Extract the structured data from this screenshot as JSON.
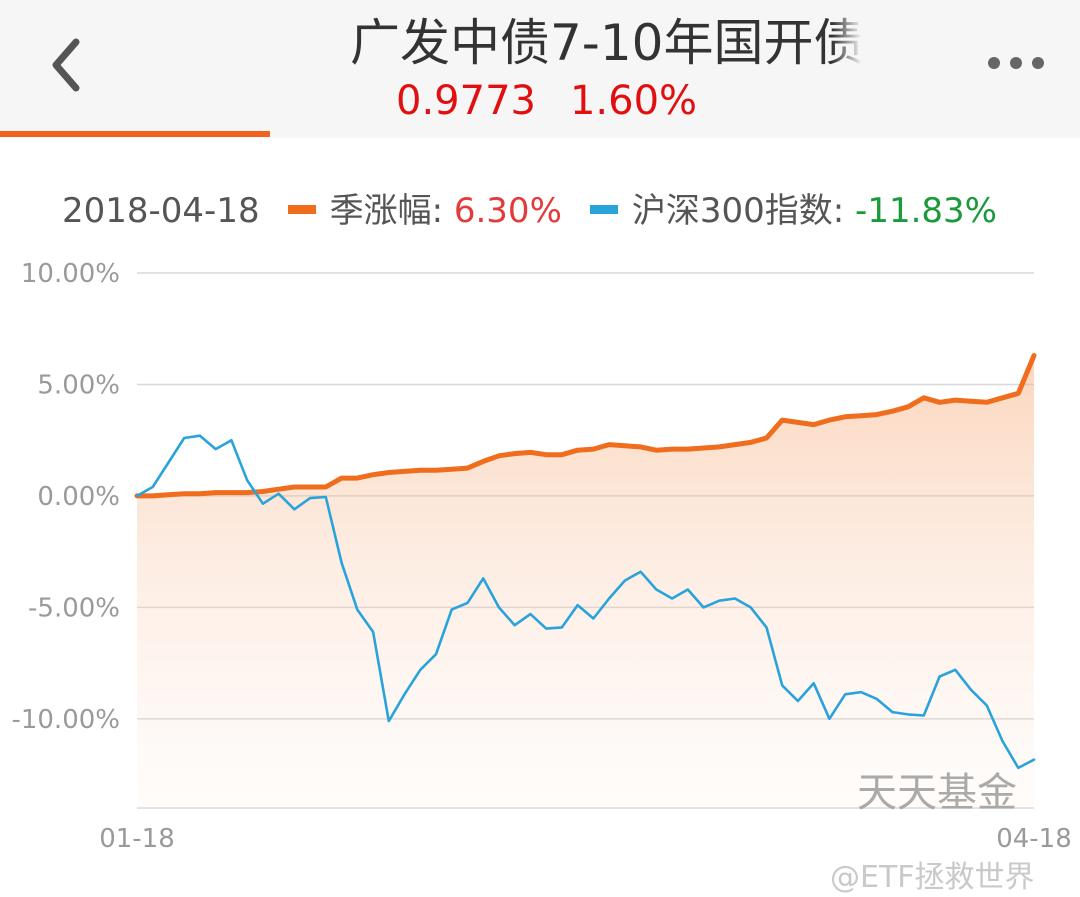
{
  "header": {
    "title": "广发中债7-10年国开债",
    "price": "0.9773",
    "change": "1.60%",
    "back_icon": "chevron-left-icon",
    "more_icon": "more-horizontal-icon"
  },
  "legend": {
    "date": "2018-04-18",
    "series1_label": "季涨幅: ",
    "series1_value": "6.30%",
    "series2_label": "沪深300指数: ",
    "series2_value": "-11.83%"
  },
  "watermark": "天天基金",
  "credit": "@ETF拯救世界",
  "colors": {
    "orange": "#ef6d1c",
    "blue": "#29a3dc",
    "accent": "#f2611d",
    "red": "#e10f0f",
    "green": "#1a9a3a"
  },
  "chart_data": {
    "type": "line",
    "x_ticks": [
      "01-18",
      "04-18"
    ],
    "y_ticks": [
      "10.00%",
      "5.00%",
      "0.00%",
      "-5.00%",
      "-10.00%"
    ],
    "ylim": [
      -14,
      10
    ],
    "grid": true,
    "series": [
      {
        "name": "季涨幅",
        "color": "#ef6d1c",
        "fill": true,
        "values": [
          0.0,
          0.0,
          0.05,
          0.1,
          0.1,
          0.15,
          0.15,
          0.15,
          0.2,
          0.3,
          0.4,
          0.4,
          0.4,
          0.8,
          0.8,
          0.95,
          1.05,
          1.1,
          1.15,
          1.15,
          1.2,
          1.25,
          1.55,
          1.8,
          1.9,
          1.95,
          1.85,
          1.85,
          2.05,
          2.1,
          2.3,
          2.25,
          2.2,
          2.05,
          2.1,
          2.1,
          2.15,
          2.2,
          2.3,
          2.4,
          2.6,
          3.4,
          3.3,
          3.2,
          3.4,
          3.55,
          3.6,
          3.65,
          3.8,
          4.0,
          4.4,
          4.2,
          4.3,
          4.25,
          4.2,
          4.4,
          4.6,
          6.3
        ]
      },
      {
        "name": "沪深300指数",
        "color": "#29a3dc",
        "fill": false,
        "values": [
          0.0,
          0.4,
          1.5,
          2.6,
          2.7,
          2.1,
          2.5,
          0.7,
          -0.35,
          0.1,
          -0.6,
          -0.1,
          -0.05,
          -3.0,
          -5.1,
          -6.1,
          -10.1,
          -8.9,
          -7.8,
          -7.1,
          -5.1,
          -4.8,
          -3.7,
          -5.0,
          -5.8,
          -5.3,
          -5.95,
          -5.9,
          -4.9,
          -5.5,
          -4.6,
          -3.8,
          -3.4,
          -4.2,
          -4.6,
          -4.2,
          -5.0,
          -4.7,
          -4.6,
          -5.0,
          -5.9,
          -8.5,
          -9.2,
          -8.4,
          -10.0,
          -8.9,
          -8.8,
          -9.1,
          -9.7,
          -9.8,
          -9.85,
          -8.1,
          -7.8,
          -8.7,
          -9.4,
          -11.0,
          -12.2,
          -11.83
        ]
      }
    ]
  }
}
